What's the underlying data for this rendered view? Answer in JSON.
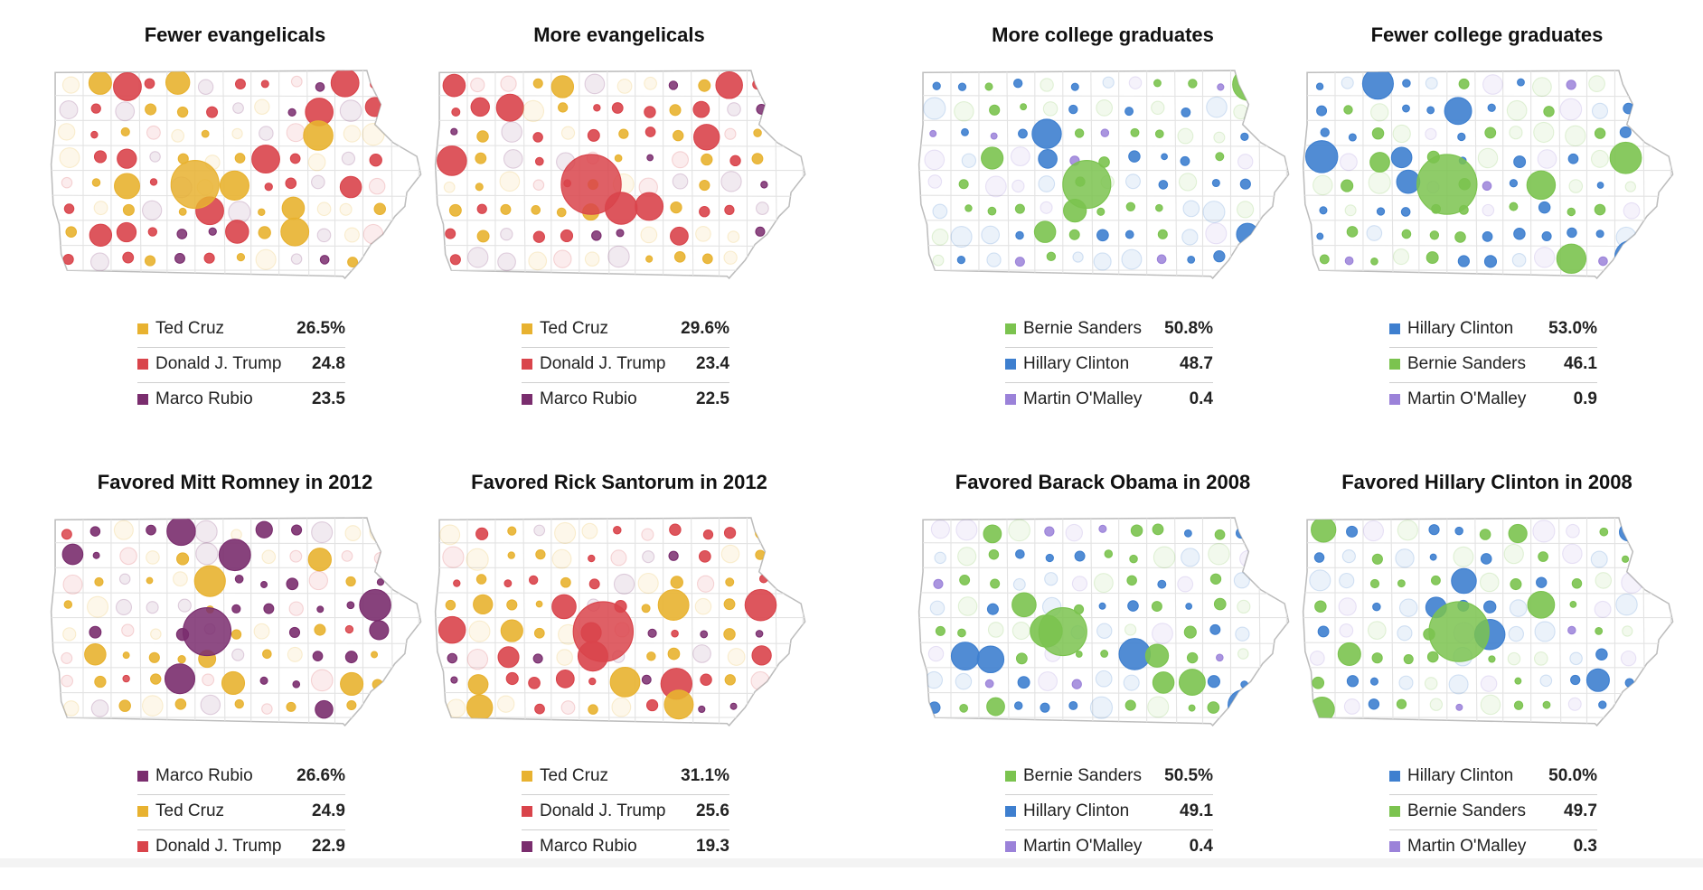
{
  "colors": {
    "cruz": "#e8b230",
    "trump": "#d9444b",
    "rubio": "#7a2d6e",
    "sanders": "#7bc34f",
    "clinton": "#3e7fcf",
    "omalley": "#9b82d9",
    "other": "#777777",
    "state_fill": "#ffffff",
    "state_grid": "#e3e3e3",
    "state_outline": "#bdbdbd"
  },
  "panels": [
    {
      "title": "Fewer evangelicals",
      "party": "rep",
      "legend": [
        {
          "name": "Ted Cruz",
          "pct": "26.5%",
          "color_key": "cruz"
        },
        {
          "name": "Donald J. Trump",
          "pct": "24.8",
          "color_key": "trump"
        },
        {
          "name": "Marco Rubio",
          "pct": "23.5",
          "color_key": "rubio"
        }
      ]
    },
    {
      "title": "More evangelicals",
      "party": "rep",
      "legend": [
        {
          "name": "Ted Cruz",
          "pct": "29.6%",
          "color_key": "cruz"
        },
        {
          "name": "Donald J. Trump",
          "pct": "23.4",
          "color_key": "trump"
        },
        {
          "name": "Marco Rubio",
          "pct": "22.5",
          "color_key": "rubio"
        }
      ]
    },
    {
      "title": "More college graduates",
      "party": "dem",
      "legend": [
        {
          "name": "Bernie Sanders",
          "pct": "50.8%",
          "color_key": "sanders"
        },
        {
          "name": "Hillary Clinton",
          "pct": "48.7",
          "color_key": "clinton"
        },
        {
          "name": "Martin O'Malley",
          "pct": "0.4",
          "color_key": "omalley"
        }
      ]
    },
    {
      "title": "Fewer college graduates",
      "party": "dem",
      "legend": [
        {
          "name": "Hillary Clinton",
          "pct": "53.0%",
          "color_key": "clinton"
        },
        {
          "name": "Bernie Sanders",
          "pct": "46.1",
          "color_key": "sanders"
        },
        {
          "name": "Martin O'Malley",
          "pct": "0.9",
          "color_key": "omalley"
        }
      ]
    },
    {
      "title": "Favored Mitt Romney in 2012",
      "party": "rep",
      "legend": [
        {
          "name": "Marco Rubio",
          "pct": "26.6%",
          "color_key": "rubio"
        },
        {
          "name": "Ted Cruz",
          "pct": "24.9",
          "color_key": "cruz"
        },
        {
          "name": "Donald J. Trump",
          "pct": "22.9",
          "color_key": "trump"
        }
      ]
    },
    {
      "title": "Favored Rick Santorum in 2012",
      "party": "rep",
      "legend": [
        {
          "name": "Ted Cruz",
          "pct": "31.1%",
          "color_key": "cruz"
        },
        {
          "name": "Donald J. Trump",
          "pct": "25.6",
          "color_key": "trump"
        },
        {
          "name": "Marco Rubio",
          "pct": "19.3",
          "color_key": "rubio"
        }
      ]
    },
    {
      "title": "Favored Barack Obama in 2008",
      "party": "dem",
      "legend": [
        {
          "name": "Bernie Sanders",
          "pct": "50.5%",
          "color_key": "sanders"
        },
        {
          "name": "Hillary Clinton",
          "pct": "49.1",
          "color_key": "clinton"
        },
        {
          "name": "Martin O'Malley",
          "pct": "0.4",
          "color_key": "omalley"
        }
      ]
    },
    {
      "title": "Favored Hillary Clinton in 2008",
      "party": "dem",
      "legend": [
        {
          "name": "Hillary Clinton",
          "pct": "50.0%",
          "color_key": "clinton"
        },
        {
          "name": "Bernie Sanders",
          "pct": "49.7",
          "color_key": "sanders"
        },
        {
          "name": "Martin O'Malley",
          "pct": "0.3",
          "color_key": "omalley"
        }
      ]
    }
  ]
}
